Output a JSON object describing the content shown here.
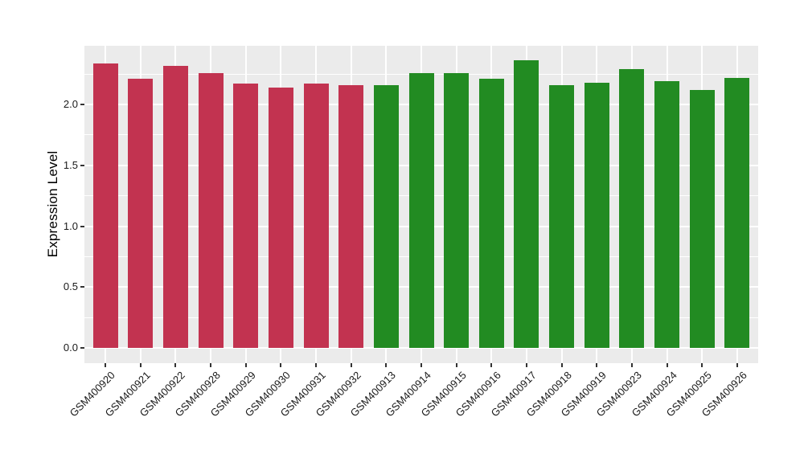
{
  "chart_data": {
    "type": "bar",
    "title": "",
    "xlabel": "",
    "ylabel": "Expression Level",
    "categories": [
      "GSM400920",
      "GSM400921",
      "GSM400922",
      "GSM400928",
      "GSM400929",
      "GSM400930",
      "GSM400931",
      "GSM400932",
      "GSM400913",
      "GSM400914",
      "GSM400915",
      "GSM400916",
      "GSM400917",
      "GSM400918",
      "GSM400919",
      "GSM400923",
      "GSM400924",
      "GSM400925",
      "GSM400926"
    ],
    "values": [
      2.34,
      2.21,
      2.32,
      2.26,
      2.17,
      2.14,
      2.17,
      2.16,
      2.16,
      2.26,
      2.26,
      2.21,
      2.36,
      2.16,
      2.18,
      2.29,
      2.19,
      2.12,
      2.22
    ],
    "groups": [
      "red",
      "red",
      "red",
      "red",
      "red",
      "red",
      "red",
      "red",
      "green",
      "green",
      "green",
      "green",
      "green",
      "green",
      "green",
      "green",
      "green",
      "green",
      "green"
    ],
    "group_colors": {
      "red": "#C23350",
      "green": "#228B22"
    },
    "yticks": [
      0.0,
      0.5,
      1.0,
      1.5,
      2.0
    ],
    "ytick_labels": [
      "0.0",
      "0.5",
      "1.0",
      "1.5",
      "2.0"
    ],
    "yminor_ticks": [
      0.25,
      0.75,
      1.25,
      1.75,
      2.25
    ],
    "ylim": [
      -0.125,
      2.482
    ],
    "legend": "none",
    "grid": "major-and-minor",
    "colors": {
      "panel_background": "#EBEBEB",
      "grid_line": "#FFFFFF",
      "tick_mark": "#333333",
      "axis_text": "#1A1A1A",
      "axis_title": "#000000",
      "figure_background": "#FFFFFF"
    }
  }
}
